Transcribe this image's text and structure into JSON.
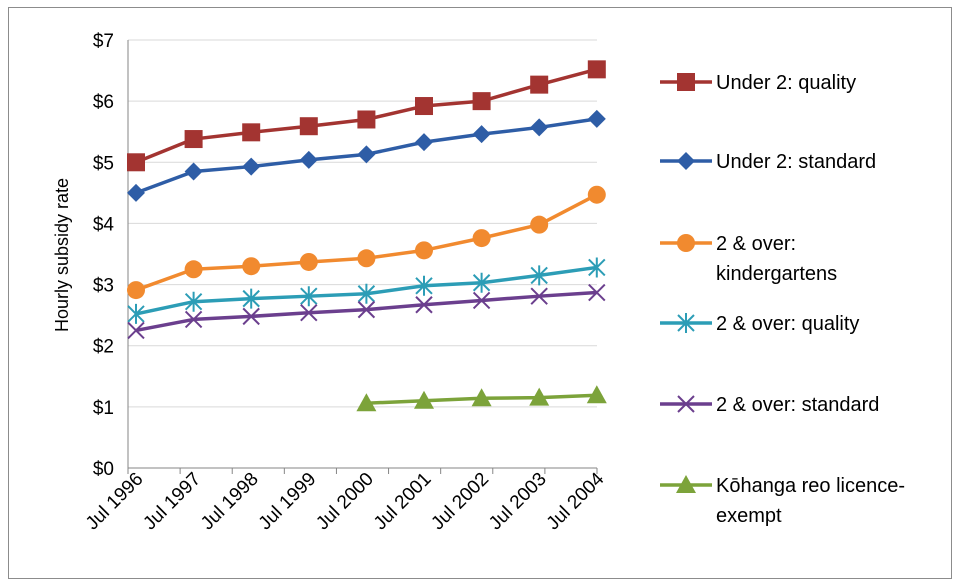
{
  "chart_data": {
    "type": "line",
    "title": "",
    "xlabel": "",
    "ylabel": "Hourly subsidy rate",
    "ylim": [
      0,
      7
    ],
    "y_tick_labels": [
      "$0",
      "$1",
      "$2",
      "$3",
      "$4",
      "$5",
      "$6",
      "$7"
    ],
    "categories": [
      "Jul 1996",
      "Jul 1997",
      "Jul 1998",
      "Jul 1999",
      "Jul 2000",
      "Jul 2001",
      "Jul 2002",
      "Jul 2003",
      "Jul 2004"
    ],
    "grid": "horizontal",
    "legend_position": "right",
    "series": [
      {
        "name": "Under 2: quality",
        "color": "#A33431",
        "marker": "square",
        "values": [
          5.0,
          5.38,
          5.49,
          5.59,
          5.7,
          5.92,
          6.0,
          6.27,
          6.52
        ]
      },
      {
        "name": "Under 2: standard",
        "color": "#2E5DA6",
        "marker": "diamond",
        "values": [
          4.5,
          4.85,
          4.93,
          5.04,
          5.13,
          5.33,
          5.46,
          5.57,
          5.71
        ]
      },
      {
        "name": "2 & over: kindergartens",
        "color": "#F18A2F",
        "marker": "circle",
        "values": [
          2.91,
          3.25,
          3.3,
          3.37,
          3.43,
          3.56,
          3.76,
          3.98,
          4.47
        ]
      },
      {
        "name": "2 & over: quality",
        "color": "#2C9DB6",
        "marker": "star",
        "values": [
          2.52,
          2.72,
          2.77,
          2.81,
          2.85,
          2.98,
          3.03,
          3.15,
          3.28
        ]
      },
      {
        "name": "2 & over: standard",
        "color": "#6B3F8E",
        "marker": "x",
        "values": [
          2.25,
          2.43,
          2.48,
          2.54,
          2.59,
          2.67,
          2.74,
          2.81,
          2.87
        ]
      },
      {
        "name": "Kōhanga reo licence-exempt",
        "color": "#7CA33A",
        "marker": "triangle",
        "values": [
          null,
          null,
          null,
          null,
          1.06,
          1.1,
          1.14,
          1.15,
          1.19
        ]
      }
    ]
  }
}
